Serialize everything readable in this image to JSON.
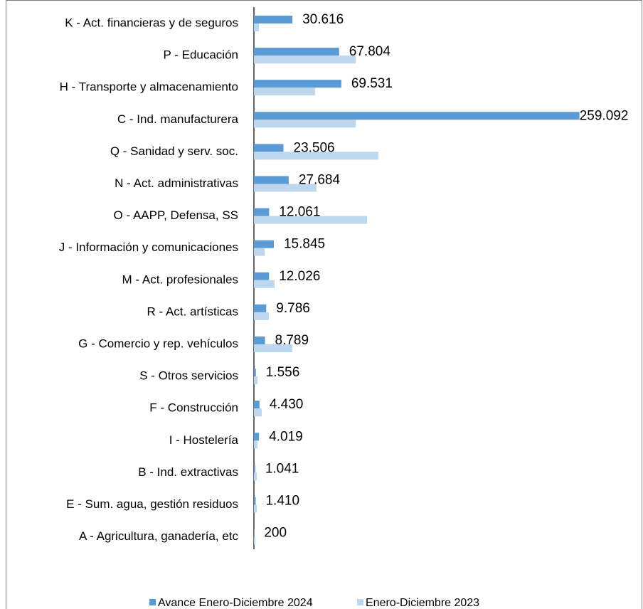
{
  "chart_data": {
    "type": "bar",
    "orientation": "horizontal",
    "categories": [
      "K - Act. financieras y de seguros",
      "P - Educación",
      "H - Transporte y almacenamiento",
      "C - Ind. manufacturera",
      "Q - Sanidad y serv. soc.",
      "N - Act. administrativas",
      "O - AAPP, Defensa, SS",
      "J - Información y comunicaciones",
      "M - Act. profesionales",
      "R - Act. artísticas",
      "G - Comercio y rep. vehículos",
      "S - Otros servicios",
      "F - Construcción",
      "I - Hostelería",
      "B - Ind. extractivas",
      "E - Sum. agua, gestión residuos",
      "A - Agricultura, ganadería, etc"
    ],
    "series": [
      {
        "name": "Avance Enero-Diciembre 2024",
        "color": "#5b9bd5",
        "values": [
          30616,
          67804,
          69531,
          259092,
          23506,
          27684,
          12061,
          15845,
          12026,
          9786,
          8789,
          1556,
          4430,
          4019,
          1041,
          1410,
          200
        ],
        "value_labels": [
          "30.616",
          "67.804",
          "69.531",
          "259.092",
          "23.506",
          "27.684",
          "12.061",
          "15.845",
          "12.026",
          "9.786",
          "8.789",
          "1.556",
          "4.430",
          "4.019",
          "1.041",
          "1.410",
          "200"
        ]
      },
      {
        "name": "Enero-Diciembre 2023",
        "color": "#bdd7ee",
        "values": [
          4000,
          81000,
          48600,
          81000,
          99000,
          49800,
          90000,
          8500,
          16400,
          11900,
          30500,
          2800,
          6200,
          2800,
          2300,
          2300,
          1100
        ]
      }
    ],
    "xlim": [
      0,
      300000
    ]
  }
}
